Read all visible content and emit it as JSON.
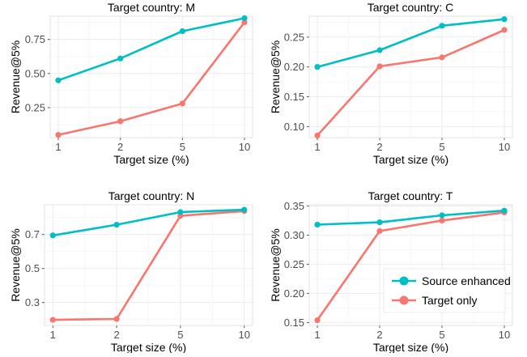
{
  "colors": {
    "source": "#00BFC4",
    "target": "#F8766D",
    "grid": "#ebebeb",
    "axis": "#4d4d4d"
  },
  "legend": {
    "position": "inside-bottom-right of panel T",
    "items": [
      {
        "label": "Source enhanced",
        "color": "#00BFC4"
      },
      {
        "label": "Target only",
        "color": "#F8766D"
      }
    ]
  },
  "chart_data": [
    {
      "type": "line",
      "title": "Target country: M",
      "xlabel": "Target size (%)",
      "ylabel": "Revenue@5%",
      "categories": [
        "1",
        "2",
        "5",
        "10"
      ],
      "ylim": [
        0.03,
        0.92
      ],
      "yticks": [
        0.25,
        0.5,
        0.75
      ],
      "ytick_labels": [
        "0.25",
        "0.50",
        "0.75"
      ],
      "series": [
        {
          "name": "Source enhanced",
          "values": [
            0.45,
            0.61,
            0.81,
            0.905
          ]
        },
        {
          "name": "Target only",
          "values": [
            0.05,
            0.15,
            0.28,
            0.875
          ]
        }
      ]
    },
    {
      "type": "line",
      "title": "Target country: C",
      "xlabel": "Target size (%)",
      "ylabel": "Revenue@5%",
      "categories": [
        "1",
        "2",
        "5",
        "10"
      ],
      "ylim": [
        0.0815,
        0.285
      ],
      "yticks": [
        0.1,
        0.15,
        0.2,
        0.25
      ],
      "ytick_labels": [
        "0.10",
        "0.15",
        "0.20",
        "0.25"
      ],
      "series": [
        {
          "name": "Source enhanced",
          "values": [
            0.2,
            0.228,
            0.269,
            0.28
          ]
        },
        {
          "name": "Target only",
          "values": [
            0.085,
            0.201,
            0.216,
            0.262
          ]
        }
      ]
    },
    {
      "type": "line",
      "title": "Target country: N",
      "xlabel": "Target size (%)",
      "ylabel": "Revenue@5%",
      "categories": [
        "1",
        "2",
        "5",
        "10"
      ],
      "ylim": [
        0.165,
        0.875
      ],
      "yticks": [
        0.3,
        0.5,
        0.7
      ],
      "ytick_labels": [
        "0.3",
        "0.5",
        "0.7"
      ],
      "series": [
        {
          "name": "Source enhanced",
          "values": [
            0.695,
            0.758,
            0.832,
            0.846
          ]
        },
        {
          "name": "Target only",
          "values": [
            0.198,
            0.203,
            0.81,
            0.838
          ]
        }
      ]
    },
    {
      "type": "line",
      "title": "Target country: T",
      "xlabel": "Target size (%)",
      "ylabel": "Revenue@5%",
      "categories": [
        "1",
        "2",
        "5",
        "10"
      ],
      "ylim": [
        0.145,
        0.352
      ],
      "yticks": [
        0.15,
        0.2,
        0.25,
        0.3,
        0.35
      ],
      "ytick_labels": [
        "0.15",
        "0.20",
        "0.25",
        "0.30",
        "0.35"
      ],
      "series": [
        {
          "name": "Source enhanced",
          "values": [
            0.318,
            0.322,
            0.334,
            0.342
          ]
        },
        {
          "name": "Target only",
          "values": [
            0.154,
            0.307,
            0.325,
            0.339
          ]
        }
      ]
    }
  ]
}
